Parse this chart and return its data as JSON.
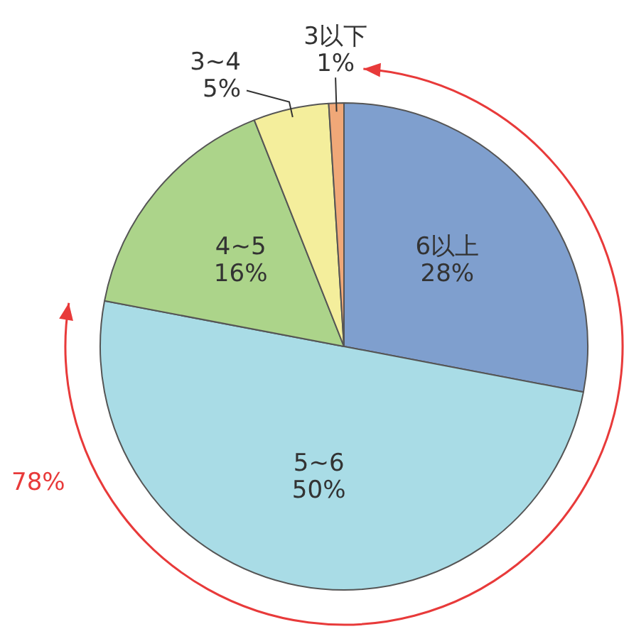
{
  "chart_data": {
    "type": "pie",
    "categories": [
      "6以上",
      "5~6",
      "4~5",
      "3~4",
      "3以下"
    ],
    "values": [
      28,
      50,
      16,
      5,
      1
    ],
    "colors": [
      "#7f9fce",
      "#a9dce6",
      "#acd48a",
      "#f4ee9c",
      "#f0a878"
    ],
    "value_labels": [
      "28%",
      "50%",
      "16%",
      "5%",
      "1%"
    ],
    "annotations": [
      "78%"
    ],
    "legend": false
  }
}
